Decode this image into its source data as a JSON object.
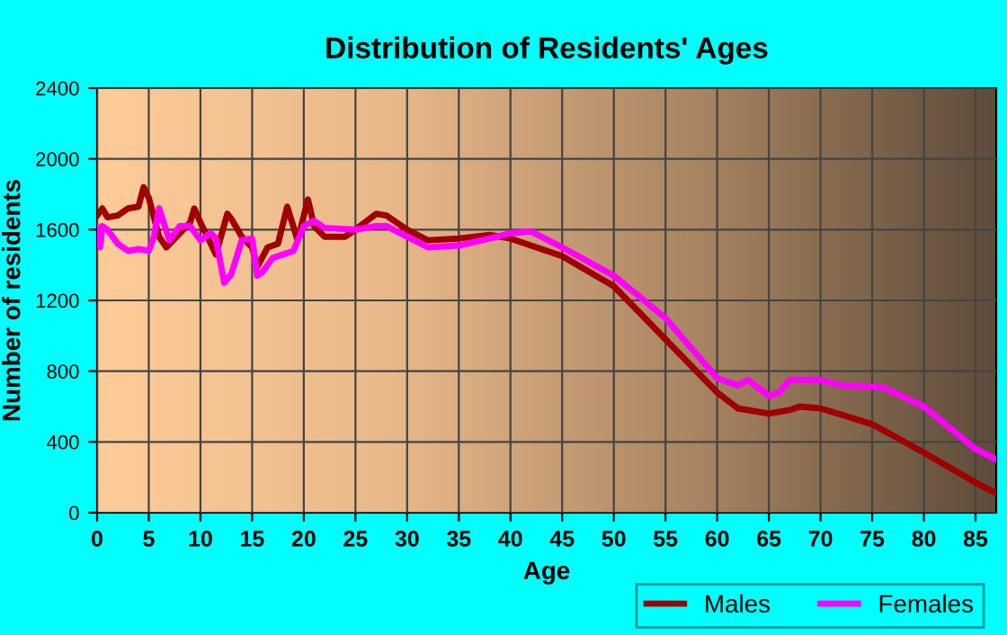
{
  "chart_data": {
    "type": "line",
    "title": "Distribution of Residents' Ages",
    "xlabel": "Age",
    "ylabel": "Number of residents",
    "xlim": [
      0,
      87
    ],
    "xticks": [
      0,
      5,
      10,
      15,
      20,
      25,
      30,
      35,
      40,
      45,
      50,
      55,
      60,
      65,
      70,
      75,
      80,
      85
    ],
    "ylim": [
      0,
      2400
    ],
    "yticks": [
      0,
      400,
      800,
      1200,
      1600,
      2000,
      2400
    ],
    "grid": true,
    "legend": "bottom",
    "series": [
      {
        "name": "Males",
        "color": "#a00000",
        "x": [
          0,
          0.5,
          1,
          2,
          3,
          4,
          4.5,
          5,
          6,
          6.7,
          8,
          9,
          9.4,
          10,
          11,
          11.5,
          12.6,
          13,
          14,
          15,
          15.5,
          16.5,
          17.5,
          18.4,
          19.4,
          20.4,
          21,
          22,
          24,
          25,
          27,
          28,
          30,
          32,
          35,
          38,
          40,
          45,
          50,
          55,
          60,
          62,
          65,
          67,
          68,
          70,
          75,
          80,
          85,
          87
        ],
        "values": [
          1680,
          1720,
          1670,
          1680,
          1720,
          1730,
          1840,
          1780,
          1560,
          1500,
          1580,
          1640,
          1720,
          1640,
          1520,
          1460,
          1690,
          1660,
          1560,
          1500,
          1390,
          1500,
          1520,
          1730,
          1540,
          1770,
          1620,
          1560,
          1560,
          1600,
          1690,
          1680,
          1600,
          1540,
          1550,
          1570,
          1550,
          1450,
          1280,
          980,
          680,
          590,
          560,
          580,
          600,
          590,
          500,
          340,
          170,
          110
        ]
      },
      {
        "name": "Females",
        "color": "#ff00ff",
        "x": [
          0,
          0.3,
          0.5,
          1,
          2,
          3,
          4,
          5,
          5.5,
          6,
          7,
          8,
          9,
          10,
          11,
          11.5,
          12.3,
          13,
          14,
          15,
          15.5,
          16,
          17,
          18,
          19,
          20,
          21,
          22,
          25,
          27,
          28,
          30,
          32,
          35,
          38,
          40,
          42,
          45,
          50,
          55,
          60,
          62,
          63,
          65,
          66,
          67,
          70,
          72,
          76,
          80,
          85,
          87
        ],
        "values": [
          1610,
          1500,
          1620,
          1600,
          1520,
          1480,
          1490,
          1480,
          1560,
          1720,
          1540,
          1620,
          1620,
          1540,
          1580,
          1550,
          1300,
          1350,
          1540,
          1550,
          1340,
          1360,
          1440,
          1460,
          1480,
          1620,
          1650,
          1610,
          1600,
          1620,
          1620,
          1560,
          1500,
          1510,
          1550,
          1580,
          1590,
          1500,
          1340,
          1100,
          760,
          720,
          750,
          660,
          680,
          750,
          750,
          720,
          710,
          600,
          360,
          300
        ]
      }
    ]
  }
}
